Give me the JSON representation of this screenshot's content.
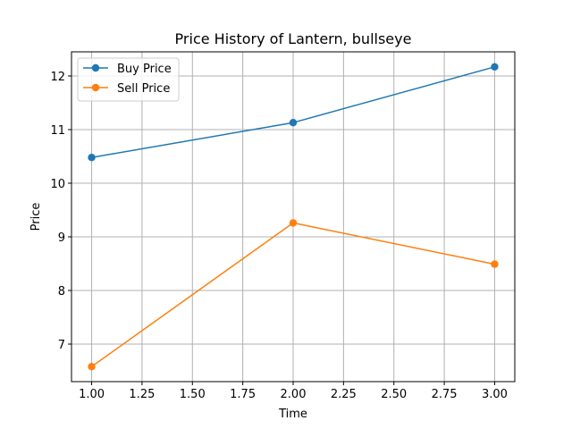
{
  "chart_data": {
    "type": "line",
    "title": "Price History of Lantern, bullseye",
    "xlabel": "Time",
    "ylabel": "Price",
    "xlim": [
      0.9,
      3.1
    ],
    "ylim": [
      6.3,
      12.45
    ],
    "xticks": [
      1.0,
      1.25,
      1.5,
      1.75,
      2.0,
      2.25,
      2.5,
      2.75,
      3.0
    ],
    "xtick_labels": [
      "1.00",
      "1.25",
      "1.50",
      "1.75",
      "2.00",
      "2.25",
      "2.50",
      "2.75",
      "3.00"
    ],
    "yticks": [
      7,
      8,
      9,
      10,
      11,
      12
    ],
    "ytick_labels": [
      "7",
      "8",
      "9",
      "10",
      "11",
      "12"
    ],
    "grid": true,
    "legend_position": "upper-left",
    "x": [
      1,
      2,
      3
    ],
    "series": [
      {
        "name": "Buy Price",
        "color": "#1f77b4",
        "marker": "circle",
        "values": [
          10.48,
          11.13,
          12.17
        ]
      },
      {
        "name": "Sell Price",
        "color": "#ff7f0e",
        "marker": "circle",
        "values": [
          6.58,
          9.26,
          8.49
        ]
      }
    ]
  }
}
